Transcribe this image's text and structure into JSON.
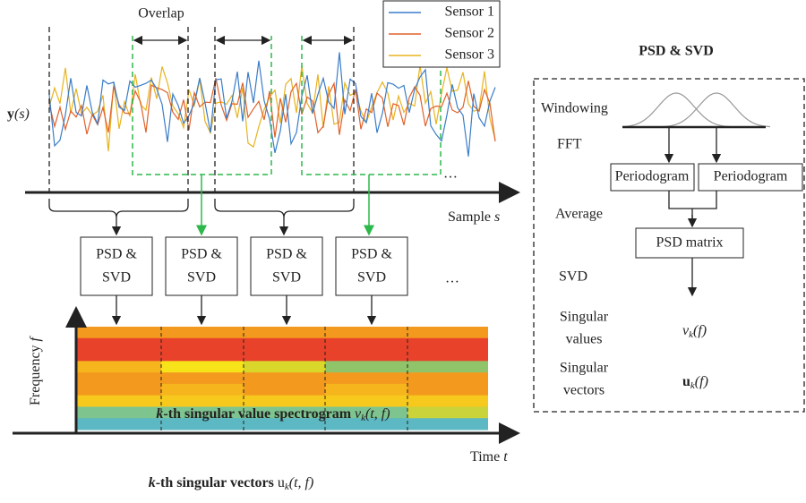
{
  "signal": {
    "overlap": "Overlap",
    "legend": [
      "Sensor 1",
      "Sensor 2",
      "Sensor 3"
    ],
    "y_label": {
      "symbol": "y",
      "arg": "(s)"
    },
    "x_label": {
      "text": "Sample ",
      "var": "s"
    },
    "ellipsis": "…"
  },
  "blocks": [
    {
      "line1": "PSD &",
      "line2": "SVD"
    },
    {
      "line1": "PSD &",
      "line2": "SVD"
    },
    {
      "line1": "PSD &",
      "line2": "SVD"
    },
    {
      "line1": "PSD &",
      "line2": "SVD"
    }
  ],
  "blocks_ellipsis": "…",
  "spectrogram": {
    "y_label": {
      "text": "Frequency ",
      "var": "f"
    },
    "x_label": {
      "text": "Time ",
      "var": "t"
    },
    "caption": {
      "k": "k",
      "text": "-th singular value spectrogram ",
      "symbol": "ν",
      "sub": "k",
      "arg": "(t, f)"
    }
  },
  "footer": {
    "k": "k",
    "text": "-th singular vectors ",
    "symbol": "u",
    "sub": "k",
    "arg": "(t, f)"
  },
  "panel": {
    "title": "PSD & SVD",
    "windowing": "Windowing",
    "fft": "FFT",
    "periodogram": [
      "Periodogram",
      "Periodogram"
    ],
    "average": "Average",
    "psd_matrix": "PSD matrix",
    "svd": "SVD",
    "singular_values": [
      "Singular",
      "values"
    ],
    "values_symbol": {
      "symbol": "ν",
      "sub": "k",
      "arg": "(f)"
    },
    "singular_vectors": [
      "Singular",
      "vectors"
    ],
    "vectors_symbol": {
      "symbol": "u",
      "sub": "k",
      "arg": "(f)"
    }
  }
}
